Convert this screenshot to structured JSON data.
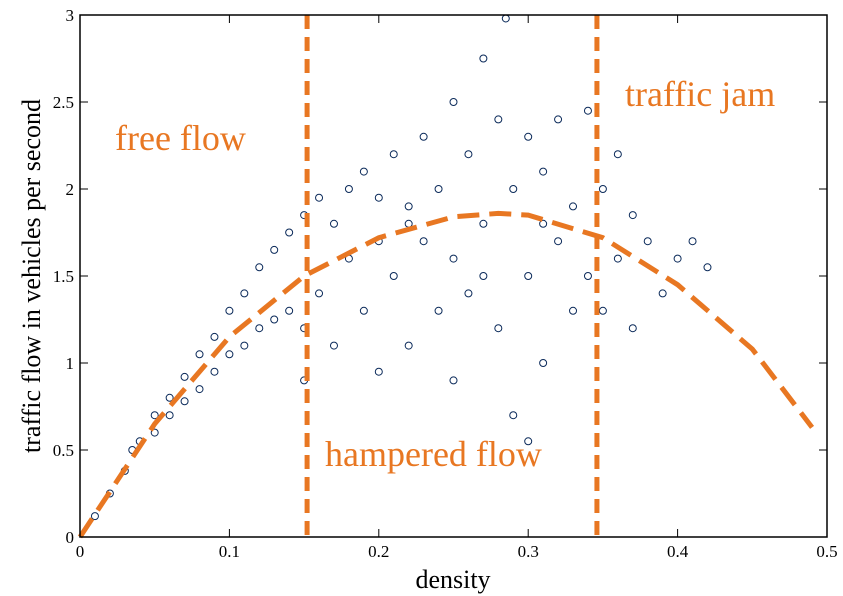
{
  "chart_data": {
    "type": "scatter",
    "xlabel": "density",
    "ylabel": "traffic flow in vehicles per second",
    "annotations": [
      "free flow",
      "hampered flow",
      "traffic jam"
    ],
    "xlim": [
      0,
      0.5
    ],
    "ylim": [
      0,
      3
    ],
    "xticks": [
      0,
      0.1,
      0.2,
      0.3,
      0.4,
      0.5
    ],
    "yticks": [
      0,
      0.5,
      1,
      1.5,
      2,
      2.5,
      3
    ],
    "vlines": [
      0.152,
      0.346
    ],
    "vline_color": "#e87722",
    "series": [
      {
        "type": "scatter",
        "color": "#0b2a5a",
        "x": [
          0.01,
          0.02,
          0.03,
          0.035,
          0.04,
          0.05,
          0.05,
          0.06,
          0.06,
          0.07,
          0.07,
          0.08,
          0.08,
          0.09,
          0.09,
          0.1,
          0.1,
          0.11,
          0.11,
          0.12,
          0.12,
          0.13,
          0.13,
          0.14,
          0.14,
          0.15,
          0.15,
          0.15,
          0.16,
          0.16,
          0.17,
          0.17,
          0.18,
          0.18,
          0.19,
          0.19,
          0.2,
          0.2,
          0.21,
          0.21,
          0.22,
          0.22,
          0.23,
          0.23,
          0.24,
          0.24,
          0.25,
          0.25,
          0.25,
          0.26,
          0.26,
          0.27,
          0.27,
          0.28,
          0.28,
          0.285,
          0.29,
          0.29,
          0.3,
          0.3,
          0.3,
          0.31,
          0.31,
          0.32,
          0.32,
          0.33,
          0.33,
          0.34,
          0.34,
          0.35,
          0.35,
          0.36,
          0.36,
          0.37,
          0.37,
          0.38,
          0.39,
          0.4,
          0.41,
          0.42,
          0.2,
          0.22,
          0.27,
          0.31
        ],
        "values": [
          0.12,
          0.25,
          0.38,
          0.5,
          0.55,
          0.7,
          0.6,
          0.8,
          0.7,
          0.92,
          0.78,
          1.05,
          0.85,
          1.15,
          0.95,
          1.3,
          1.05,
          1.4,
          1.1,
          1.55,
          1.2,
          1.65,
          1.25,
          1.75,
          1.3,
          1.85,
          1.2,
          0.9,
          1.95,
          1.4,
          1.8,
          1.1,
          2.0,
          1.6,
          2.1,
          1.3,
          1.95,
          0.95,
          2.2,
          1.5,
          1.8,
          1.1,
          2.3,
          1.7,
          2.0,
          1.3,
          2.5,
          1.6,
          0.9,
          2.2,
          1.4,
          2.75,
          1.8,
          2.4,
          1.2,
          2.98,
          2.0,
          0.7,
          2.3,
          1.5,
          0.55,
          2.1,
          1.0,
          2.4,
          1.7,
          1.9,
          1.3,
          2.45,
          1.5,
          2.0,
          1.3,
          2.2,
          1.6,
          1.85,
          1.2,
          1.7,
          1.4,
          1.6,
          1.7,
          1.55,
          1.7,
          1.9,
          1.5,
          1.8
        ]
      },
      {
        "type": "line",
        "color": "#e87722",
        "dashed": true,
        "x": [
          0,
          0.05,
          0.1,
          0.15,
          0.2,
          0.25,
          0.28,
          0.3,
          0.35,
          0.4,
          0.45,
          0.49
        ],
        "values": [
          0,
          0.65,
          1.15,
          1.5,
          1.72,
          1.84,
          1.86,
          1.85,
          1.72,
          1.45,
          1.08,
          0.63
        ]
      }
    ]
  }
}
